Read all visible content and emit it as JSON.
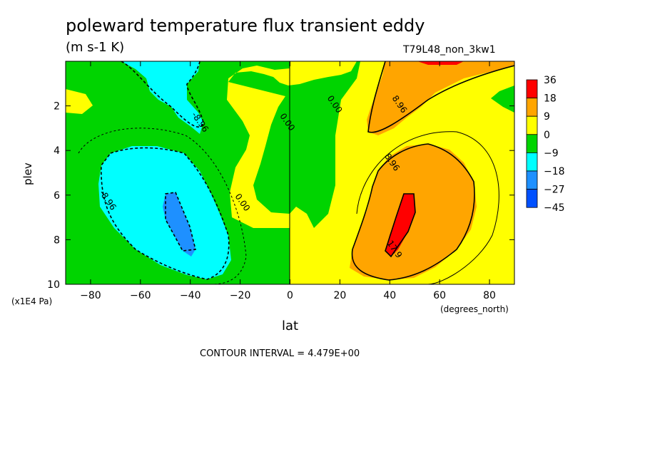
{
  "header": {
    "title": "poleward temperature flux transient eddy",
    "units": "(m s-1 K)",
    "run_label": "T79L48_non_3kw1"
  },
  "footer": {
    "contour_interval": "CONTOUR INTERVAL = 4.479E+00"
  },
  "chart_data": {
    "type": "heatmap",
    "title": "poleward temperature flux transient eddy",
    "xlabel": "lat",
    "x_units": "(degrees_north)",
    "ylabel": "plev",
    "y_units": "(x1E4 Pa)",
    "xlim": [
      -90,
      90
    ],
    "ylim": [
      10,
      0
    ],
    "x_ticks": [
      -80,
      -60,
      -40,
      -20,
      0,
      20,
      40,
      60,
      80
    ],
    "y_ticks": [
      2,
      4,
      6,
      8,
      10
    ],
    "colorbar": {
      "labels": [
        "36",
        "18",
        "9",
        "0",
        "-9",
        "-18",
        "-27",
        "-45"
      ],
      "colors": [
        "#ff0000",
        "#ffa500",
        "#ffff00",
        "#00d400",
        "#00ffff",
        "#1e90ff",
        "#0050ff"
      ]
    },
    "contour_labels": [
      {
        "text": "-8.96",
        "lat": -37,
        "plev": 2.8
      },
      {
        "text": "0.00",
        "lat": -2,
        "plev": 2.8
      },
      {
        "text": "0.00",
        "lat": 17,
        "plev": 2.0
      },
      {
        "text": "8.96",
        "lat": 43,
        "plev": 2.0
      },
      {
        "text": "8.96",
        "lat": 40,
        "plev": 4.6
      },
      {
        "text": "-8.96",
        "lat": -74,
        "plev": 6.3
      },
      {
        "text": "0.00",
        "lat": -20,
        "plev": 6.4
      },
      {
        "text": "17.9",
        "lat": 41,
        "plev": 8.5
      }
    ]
  }
}
